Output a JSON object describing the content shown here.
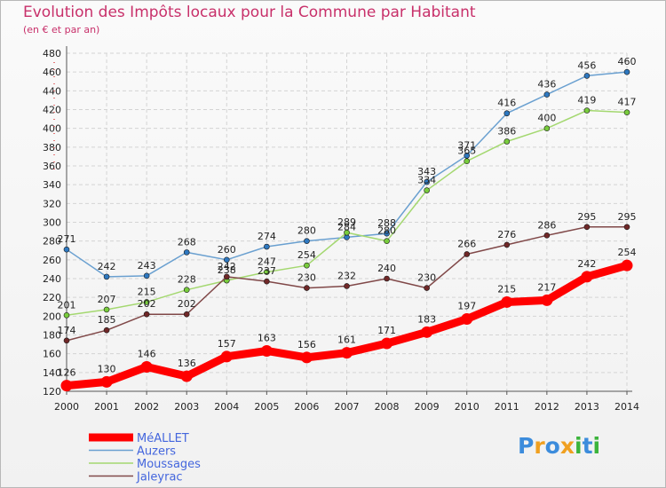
{
  "chart_data": {
    "type": "line",
    "title": "Evolution des Impôts locaux pour la Commune par Habitant",
    "subtitle": "(en € et par an)",
    "xlabel": "",
    "ylabel": "",
    "x": [
      "2000",
      "2001",
      "2002",
      "2003",
      "2004",
      "2005",
      "2006",
      "2007",
      "2008",
      "2009",
      "2010",
      "2011",
      "2012",
      "2013",
      "2014"
    ],
    "ylim": [
      120,
      480
    ],
    "ytick_step": 20,
    "grid": true,
    "legend_position": "bottom-left",
    "series": [
      {
        "name": "Auzers",
        "color": "#6aa0d0",
        "marker": "#2e78c0",
        "width": 1.5,
        "values": [
          271,
          242,
          243,
          268,
          260,
          274,
          280,
          284,
          288,
          343,
          371,
          416,
          436,
          456,
          460
        ],
        "labels": [
          "271",
          "242",
          "243",
          "268",
          "260",
          "274",
          "280",
          "284",
          "288",
          "343",
          "371",
          "416",
          "436",
          "456",
          "460"
        ]
      },
      {
        "name": "Moussages",
        "color": "#a4d870",
        "marker": "#78cc3c",
        "width": 1.5,
        "values": [
          201,
          207,
          215,
          228,
          238,
          247,
          254,
          289,
          280,
          334,
          365,
          386,
          400,
          419,
          417
        ],
        "labels": [
          "201",
          "207",
          "215",
          "228",
          "238",
          "247",
          "254",
          "289",
          "280",
          "334",
          "365",
          "386",
          "400",
          "419",
          "417"
        ]
      },
      {
        "name": "Jaleyrac",
        "color": "#804848",
        "marker": "#702828",
        "width": 1.5,
        "values": [
          174,
          185,
          202,
          202,
          242,
          237,
          230,
          232,
          240,
          230,
          266,
          276,
          286,
          295,
          295
        ],
        "labels": [
          "174",
          "185",
          "202",
          "202",
          "242",
          "237",
          "230",
          "232",
          "240",
          "230",
          "266",
          "276",
          "286",
          "295",
          "295"
        ]
      },
      {
        "name": "MéALLET",
        "color": "#ff0000",
        "marker": "#ff0000",
        "width": 9,
        "values": [
          126,
          130,
          146,
          136,
          157,
          163,
          156,
          161,
          171,
          183,
          197,
          215,
          217,
          242,
          254
        ],
        "labels": [
          "126",
          "130",
          "146",
          "136",
          "157",
          "163",
          "156",
          "161",
          "171",
          "183",
          "197",
          "215",
          "217",
          "242",
          "254"
        ]
      }
    ],
    "legend_order": [
      "MéALLET",
      "Auzers",
      "Moussages",
      "Jaleyrac"
    ]
  },
  "legend_text_color": "#4466dd",
  "logo": {
    "letters": [
      "P",
      "r",
      "o",
      "x",
      "i",
      "t",
      "i"
    ],
    "colors": [
      "#3c8cdc",
      "#f0a020",
      "#3c8cdc",
      "#f0a020",
      "#3cb43c",
      "#3c8cdc",
      "#3cb43c"
    ]
  }
}
